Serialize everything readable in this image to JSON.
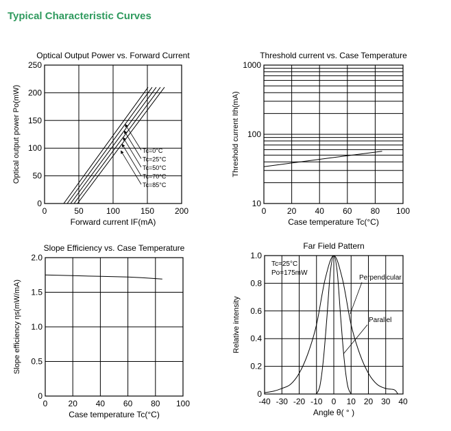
{
  "page": {
    "heading": "Typical Characteristic Curves"
  },
  "chart_data": [
    {
      "type": "line",
      "title": "Optical Output Power vs. Forward Current",
      "xlabel": "Forward current IF(mA)",
      "ylabel": "Optical output power Po(mW)",
      "xlim": [
        0,
        200
      ],
      "ylim": [
        0,
        250
      ],
      "xticks": [
        0,
        50,
        100,
        150,
        200
      ],
      "yticks": [
        0,
        50,
        100,
        150,
        200,
        250
      ],
      "grid": true,
      "series": [
        {
          "name": "Tc=0°C",
          "x": [
            0,
            28,
            151
          ],
          "y": [
            0,
            0,
            210
          ]
        },
        {
          "name": "Tc=25°C",
          "x": [
            0,
            33,
            157
          ],
          "y": [
            0,
            0,
            210
          ]
        },
        {
          "name": "Tc=50°C",
          "x": [
            0,
            38,
            163
          ],
          "y": [
            0,
            0,
            210
          ]
        },
        {
          "name": "Tc=70°C",
          "x": [
            0,
            43,
            169
          ],
          "y": [
            0,
            0,
            210
          ]
        },
        {
          "name": "Tc=85°C",
          "x": [
            0,
            48,
            175
          ],
          "y": [
            0,
            0,
            210
          ]
        }
      ]
    },
    {
      "type": "line",
      "title": "Threshold current vs. Case Temperature",
      "xlabel": "Case temperature Tc(°C)",
      "ylabel": "Threshold current Ith(mA)",
      "xlim": [
        0,
        100
      ],
      "ylim": [
        10,
        1000
      ],
      "yscale": "log",
      "xticks": [
        0,
        20,
        40,
        60,
        80,
        100
      ],
      "yticks": [
        10,
        100,
        1000
      ],
      "grid": true,
      "series": [
        {
          "x": [
            0,
            20,
            40,
            60,
            85
          ],
          "y": [
            34,
            38.5,
            43.5,
            49,
            57
          ]
        }
      ]
    },
    {
      "type": "line",
      "title": "Slope Efficiency vs. Case Temperature",
      "xlabel": "Case temperature Tc(°C)",
      "ylabel": "Slope efficiency ηs(mW/mA)",
      "xlim": [
        0,
        100
      ],
      "ylim": [
        0,
        2.0
      ],
      "xticks": [
        0,
        20,
        40,
        60,
        80,
        100
      ],
      "yticks": [
        0,
        0.5,
        1.0,
        1.5,
        2.0
      ],
      "grid": true,
      "series": [
        {
          "x": [
            0,
            20,
            40,
            60,
            70,
            85
          ],
          "y": [
            1.75,
            1.74,
            1.73,
            1.72,
            1.71,
            1.69
          ]
        }
      ]
    },
    {
      "type": "line",
      "title": "Far Field Pattern",
      "xlabel": "Angle θ( ° )",
      "ylabel": "Relative intensity",
      "xlim": [
        -40,
        40
      ],
      "ylim": [
        0,
        1.0
      ],
      "xticks": [
        -40,
        -30,
        -20,
        -10,
        0,
        10,
        20,
        30,
        40
      ],
      "yticks": [
        0,
        0.2,
        0.4,
        0.6,
        0.8,
        1.0
      ],
      "grid": true,
      "annotations": [
        "Tc=25°C",
        "Po=175mW"
      ],
      "series": [
        {
          "name": "Perpendicular",
          "x": [
            -40,
            -35,
            -30,
            -25,
            -20,
            -15,
            -10,
            -5,
            0,
            5,
            10,
            15,
            20,
            25,
            30,
            35,
            37
          ],
          "y": [
            0.01,
            0.02,
            0.04,
            0.07,
            0.15,
            0.29,
            0.5,
            0.83,
            1.0,
            0.83,
            0.5,
            0.29,
            0.15,
            0.07,
            0.04,
            0.03,
            0.0
          ]
        },
        {
          "name": "Parallel",
          "x": [
            -10,
            -8,
            -6,
            -4,
            -2,
            0,
            2,
            4,
            6,
            8,
            10
          ],
          "y": [
            0.0,
            0.06,
            0.25,
            0.55,
            0.88,
            1.0,
            0.88,
            0.55,
            0.25,
            0.06,
            0.0
          ]
        }
      ]
    }
  ]
}
